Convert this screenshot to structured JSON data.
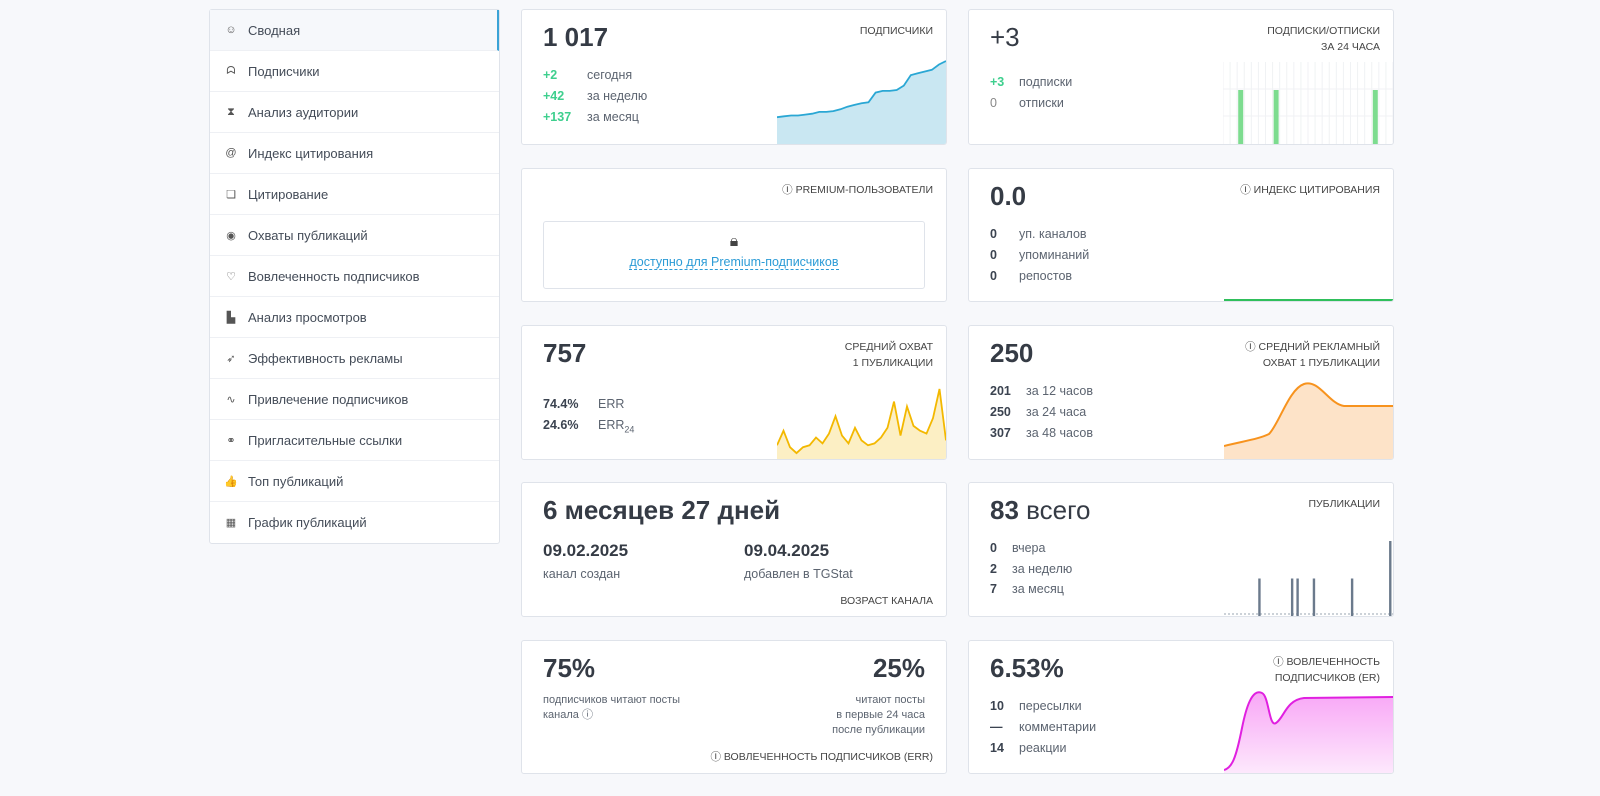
{
  "sidebar": {
    "items": [
      {
        "label": "Сводная",
        "icon": "dashboard-icon",
        "glyph": "☺"
      },
      {
        "label": "Подписчики",
        "icon": "users-icon",
        "glyph": "ᗣ"
      },
      {
        "label": "Анализ аудитории",
        "icon": "hourglass-icon",
        "glyph": "⧗"
      },
      {
        "label": "Индекс цитирования",
        "icon": "at-icon",
        "glyph": "@"
      },
      {
        "label": "Цитирование",
        "icon": "comments-icon",
        "glyph": "❏"
      },
      {
        "label": "Охваты публикаций",
        "icon": "eye-icon",
        "glyph": "◉"
      },
      {
        "label": "Вовлеченность подписчиков",
        "icon": "heart-icon",
        "glyph": "♡"
      },
      {
        "label": "Анализ просмотров",
        "icon": "bar-chart-icon",
        "glyph": "▙"
      },
      {
        "label": "Эффективность рекламы",
        "icon": "rocket-icon",
        "glyph": "➶"
      },
      {
        "label": "Привлечение подписчиков",
        "icon": "trend-icon",
        "glyph": "∿"
      },
      {
        "label": "Пригласительные ссылки",
        "icon": "link-icon",
        "glyph": "⚭"
      },
      {
        "label": "Топ публикаций",
        "icon": "thumbs-up-icon",
        "glyph": "👍"
      },
      {
        "label": "График публикаций",
        "icon": "calendar-icon",
        "glyph": "▦"
      }
    ]
  },
  "subscribers": {
    "value": "1 017",
    "title": "Подписчики",
    "rows": [
      {
        "n": "+2",
        "t": "сегодня"
      },
      {
        "n": "+42",
        "t": "за неделю"
      },
      {
        "n": "+137",
        "t": "за месяц"
      }
    ],
    "spark": [
      10,
      11,
      12,
      12,
      13,
      14,
      16,
      16,
      17,
      19,
      22,
      24,
      26,
      27,
      38,
      40,
      40,
      41,
      46,
      58,
      60,
      62,
      64,
      70,
      74
    ]
  },
  "subunsub": {
    "value": "+3",
    "title1": "Подписки/отписки",
    "title2": "за 24 часа",
    "rows": [
      {
        "n": "+3",
        "t": "подписки"
      },
      {
        "n": "0",
        "t": "отписки"
      }
    ],
    "bars": [
      0,
      0,
      1,
      0,
      0,
      0,
      0,
      1,
      0,
      0,
      0,
      0,
      0,
      0,
      0,
      0,
      0,
      0,
      0,
      0,
      0,
      1,
      0,
      0
    ],
    "color": "#7ddc8f"
  },
  "premium": {
    "title": "Premium-пользователи",
    "link": "доступно для Premium-подписчиков"
  },
  "citation": {
    "value": "0.0",
    "title": "Индекс цитирования",
    "rows": [
      {
        "n": "0",
        "t": "уп. каналов"
      },
      {
        "n": "0",
        "t": "упоминаний"
      },
      {
        "n": "0",
        "t": "репостов"
      }
    ]
  },
  "reach": {
    "value": "757",
    "title1": "Средний охват",
    "title2": "1 публикации",
    "rows": [
      {
        "n": "74.4%",
        "t": "ERR"
      },
      {
        "n": "24.6%",
        "t": "ERR",
        "sub": "24"
      }
    ],
    "spark": [
      10,
      25,
      8,
      2,
      8,
      10,
      18,
      12,
      22,
      40,
      20,
      12,
      28,
      15,
      10,
      12,
      18,
      28,
      55,
      20,
      50,
      30,
      25,
      22,
      38,
      68,
      15
    ]
  },
  "adreach": {
    "value": "250",
    "title1": "Средний рекламный",
    "title2": "охват 1 публикации",
    "rows": [
      {
        "n": "201",
        "t": "за 12 часов"
      },
      {
        "n": "250",
        "t": "за 24 часа"
      },
      {
        "n": "307",
        "t": "за 48 часов"
      }
    ]
  },
  "age": {
    "value": "6 месяцев 27 дней",
    "created": "09.02.2025",
    "created_label": "канал создан",
    "added": "09.04.2025",
    "added_label": "добавлен в TGStat",
    "title": "Возраст канала"
  },
  "posts": {
    "value": "83",
    "value_suffix": "всего",
    "title": "Публикации",
    "rows": [
      {
        "n": "0",
        "t": "вчера"
      },
      {
        "n": "2",
        "t": "за неделю"
      },
      {
        "n": "7",
        "t": "за месяц"
      }
    ],
    "bars": [
      0,
      0,
      0,
      0,
      0,
      0,
      1,
      0,
      0,
      0,
      0,
      0,
      1,
      1,
      0,
      0,
      1,
      0,
      0,
      0,
      0,
      0,
      0,
      1,
      0,
      0,
      0,
      0,
      0,
      0,
      2
    ]
  },
  "readers": {
    "left_value": "75%",
    "left_text": "подписчиков читают посты канала",
    "right_value": "25%",
    "right_text1": "читают посты",
    "right_text2": "в первые 24 часа",
    "right_text3": "после публикации",
    "footer": "Вовлеченность подписчиков (ERR)"
  },
  "er": {
    "value": "6.53%",
    "title1": "Вовлеченность",
    "title2": "подписчиков (ER)",
    "rows": [
      {
        "n": "10",
        "t": "пересылки"
      },
      {
        "n": "—",
        "t": "комментарии"
      },
      {
        "n": "14",
        "t": "реакции"
      }
    ]
  }
}
